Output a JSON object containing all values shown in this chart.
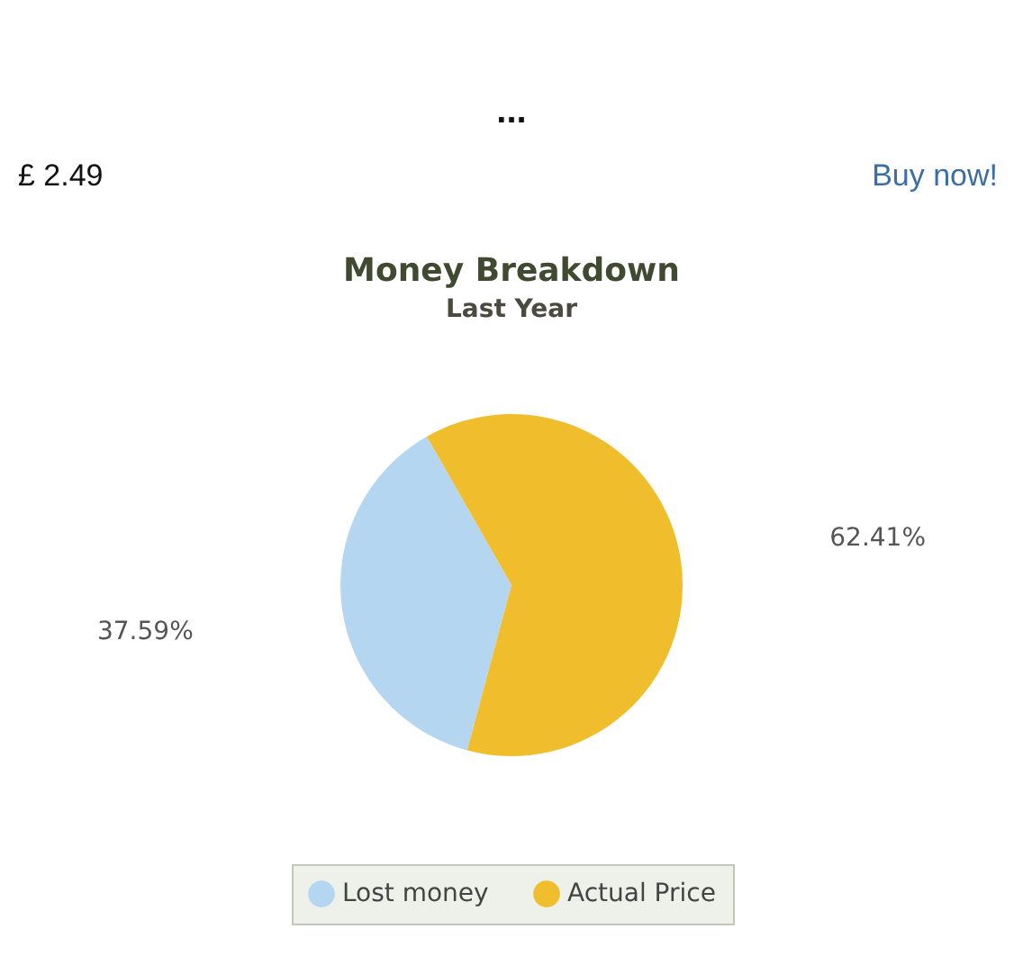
{
  "chart_data": {
    "type": "pie",
    "title": "Money Breakdown",
    "subtitle": "Last Year",
    "categories": [
      "Lost money",
      "Actual Price"
    ],
    "values": [
      37.59,
      62.41
    ],
    "colors": [
      "#b5d6f1",
      "#f0bd2c"
    ],
    "value_labels": [
      "37.59%",
      "62.41%"
    ],
    "legend": "bottom",
    "annotations": [
      "...",
      "£ 2.49",
      "Buy now!"
    ]
  }
}
